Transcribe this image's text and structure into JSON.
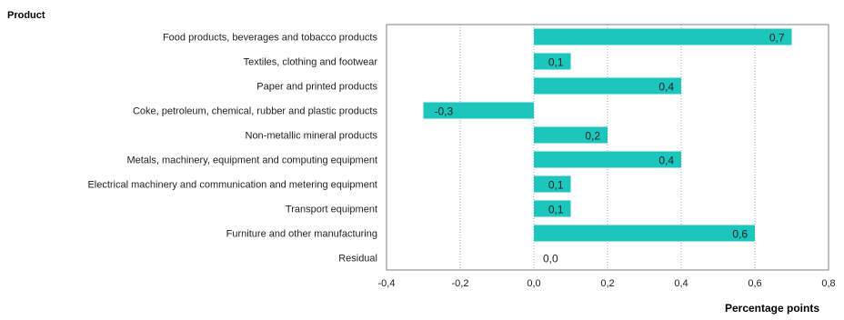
{
  "chart_data": {
    "type": "bar",
    "orientation": "horizontal",
    "ylabel": "Product",
    "xlabel": "Percentage points",
    "categories": [
      "Food products, beverages and tobacco products",
      "Textiles, clothing and footwear",
      "Paper and printed products",
      "Coke, petroleum, chemical, rubber and plastic products",
      "Non-metallic mineral products",
      "Metals, machinery, equipment and computing equipment",
      "Electrical machinery and communication and metering equipment",
      "Transport equipment",
      "Furniture and other manufacturing",
      "Residual"
    ],
    "values": [
      0.7,
      0.1,
      0.4,
      -0.3,
      0.2,
      0.4,
      0.1,
      0.1,
      0.6,
      0.0
    ],
    "value_labels": [
      "0,7",
      "0,1",
      "0,4",
      "-0,3",
      "0,2",
      "0,4",
      "0,1",
      "0,1",
      "0,6",
      "0,0"
    ],
    "xlim": [
      -0.4,
      0.8
    ],
    "xticks": [
      -0.4,
      -0.2,
      0.0,
      0.2,
      0.4,
      0.6,
      0.8
    ],
    "xtick_labels": [
      "-0,4",
      "-0,2",
      "0,0",
      "0,2",
      "0,4",
      "0,6",
      "0,8"
    ],
    "grid": "vertical-dotted",
    "bar_color": "#1cc6bd",
    "legend": "none"
  }
}
